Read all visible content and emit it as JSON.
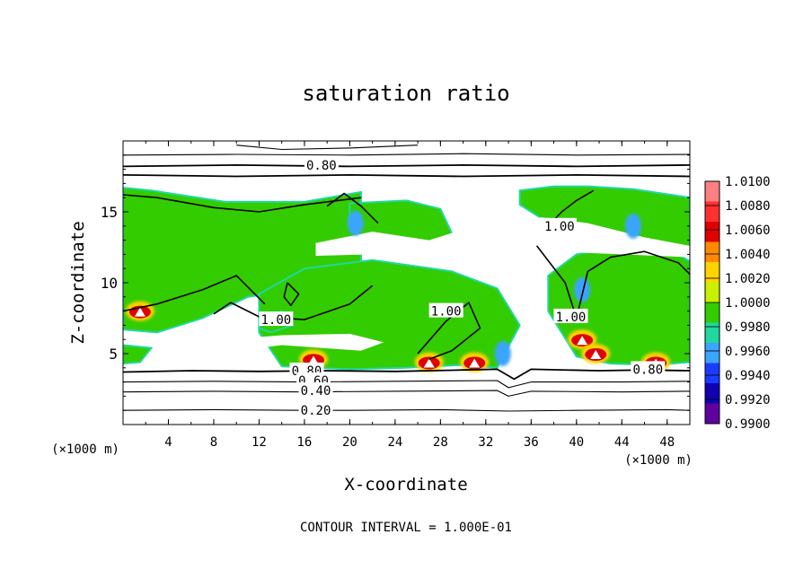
{
  "chart_data": {
    "type": "heatmap",
    "title": "saturation ratio",
    "xlabel": "X-coordinate",
    "ylabel": "Z-coordinate",
    "x_unit": "(×1000 m)",
    "x_ticks": [
      4,
      8,
      12,
      16,
      20,
      24,
      28,
      32,
      36,
      40,
      44,
      48
    ],
    "y_ticks": [
      5,
      10,
      15
    ],
    "xlim": [
      0,
      50
    ],
    "ylim": [
      0,
      20
    ],
    "footer": "CONTOUR INTERVAL = 1.000E-01",
    "colorbar": {
      "levels": [
        "1.0100",
        "1.0080",
        "1.0060",
        "1.0040",
        "1.0020",
        "1.0000",
        "0.9980",
        "0.9960",
        "0.9940",
        "0.9920",
        "0.9900"
      ],
      "colors": [
        "#ff8080",
        "#ff3030",
        "#e00000",
        "#ff8a00",
        "#ffd200",
        "#c9f000",
        "#33cc00",
        "#20d8a0",
        "#3aa4ff",
        "#1a3cff",
        "#1000b0",
        "#6000a0"
      ]
    },
    "contour_labels": [
      {
        "text": "0.80",
        "x": 17.5,
        "z": 18.3
      },
      {
        "text": "1.00",
        "x": 38.5,
        "z": 14.0
      },
      {
        "text": "1.00",
        "x": 13.5,
        "z": 7.4
      },
      {
        "text": "1.00",
        "x": 28.5,
        "z": 8.0
      },
      {
        "text": "1.00",
        "x": 39.5,
        "z": 7.6
      },
      {
        "text": "0.80",
        "x": 16.2,
        "z": 3.8
      },
      {
        "text": "0.60",
        "x": 16.8,
        "z": 3.1
      },
      {
        "text": "0.40",
        "x": 17.0,
        "z": 2.4
      },
      {
        "text": "0.20",
        "x": 17.0,
        "z": 1.0
      },
      {
        "text": "0.80",
        "x": 46.3,
        "z": 3.9
      }
    ],
    "field": {
      "green_regions": [
        {
          "x": [
            0,
            2.5,
            9,
            16,
            21,
            21,
            15,
            11,
            7,
            3,
            0
          ],
          "z": [
            16.7,
            16.5,
            15.7,
            15.7,
            16.4,
            11.5,
            9.5,
            9.0,
            7.5,
            6.5,
            6.7
          ]
        },
        {
          "x": [
            12,
            16,
            22,
            29,
            33,
            35,
            33,
            30,
            25,
            20,
            14,
            12
          ],
          "z": [
            9.2,
            11.0,
            11.6,
            10.8,
            9.6,
            7.0,
            4.0,
            4.2,
            4.0,
            3.9,
            4.1,
            6.5
          ]
        },
        {
          "x": [
            35,
            38,
            41,
            45,
            50,
            50,
            47,
            43,
            39,
            37,
            35
          ],
          "z": [
            16.5,
            16.8,
            16.8,
            16.6,
            16.0,
            12.5,
            12.0,
            12.2,
            13.2,
            14.5,
            15.5
          ]
        },
        {
          "x": [
            37.5,
            40,
            44,
            48,
            50,
            50,
            47,
            43,
            40,
            37.5
          ],
          "z": [
            10.5,
            12.0,
            12.6,
            12.5,
            11.5,
            4.4,
            4.2,
            4.3,
            4.8,
            8.0
          ]
        },
        {
          "x": [
            20,
            25,
            28,
            29,
            26,
            22,
            20
          ],
          "z": [
            15.6,
            15.8,
            15.2,
            13.5,
            12.0,
            12.5,
            14.0
          ]
        },
        {
          "x": [
            0,
            2.5,
            1.5,
            0
          ],
          "z": [
            5.6,
            5.4,
            4.4,
            4.3
          ]
        },
        {
          "x": [
            13,
            15,
            14,
            12.5,
            12
          ],
          "z": [
            6.5,
            7.0,
            8.0,
            7.5,
            6.8
          ]
        }
      ],
      "hot_spots": [
        {
          "x": 1.5,
          "z": 8.0
        },
        {
          "x": 16.8,
          "z": 4.6
        },
        {
          "x": 27.0,
          "z": 4.4
        },
        {
          "x": 31.0,
          "z": 4.4
        },
        {
          "x": 40.5,
          "z": 6.0
        },
        {
          "x": 41.7,
          "z": 5.0
        },
        {
          "x": 47.0,
          "z": 4.4
        }
      ],
      "cold_spots": [
        {
          "x": 33.5,
          "z": 5.0
        },
        {
          "x": 40.5,
          "z": 9.5
        },
        {
          "x": 20.5,
          "z": 14.2
        },
        {
          "x": 45.0,
          "z": 14.0
        }
      ],
      "white_gaps": [
        {
          "x": [
            17,
            22,
            27,
            31,
            37,
            41,
            46,
            50,
            50,
            44,
            38,
            33,
            27,
            22,
            17
          ],
          "z": [
            12.8,
            13.6,
            13.0,
            14.0,
            14.6,
            14.2,
            13.2,
            12.6,
            11.8,
            12.0,
            12.2,
            11.2,
            11.4,
            12.0,
            11.9
          ]
        },
        {
          "x": [
            1,
            6,
            14,
            20,
            23,
            21,
            14,
            8,
            3,
            1
          ],
          "z": [
            6.0,
            5.8,
            6.3,
            6.4,
            5.8,
            5.2,
            5.6,
            5.0,
            5.4,
            5.7
          ]
        }
      ]
    },
    "contours": [
      {
        "level": 0.2,
        "x": [
          0,
          8,
          16,
          20,
          28,
          34,
          40,
          48,
          50
        ],
        "z": [
          1.0,
          1.05,
          1.0,
          1.0,
          1.05,
          0.95,
          1.0,
          1.05,
          1.0
        ]
      },
      {
        "level": 0.4,
        "x": [
          0,
          8,
          16,
          24,
          33,
          34,
          36,
          44,
          50
        ],
        "z": [
          2.3,
          2.35,
          2.3,
          2.35,
          2.4,
          2.0,
          2.35,
          2.3,
          2.35
        ]
      },
      {
        "level": 0.6,
        "x": [
          0,
          8,
          16,
          24,
          33,
          34,
          36,
          44,
          50
        ],
        "z": [
          3.0,
          3.05,
          3.0,
          3.05,
          3.1,
          2.6,
          3.0,
          3.0,
          3.05
        ]
      },
      {
        "level": 0.8,
        "x": [
          0,
          6,
          12,
          18,
          24,
          30,
          33,
          34.5,
          36,
          42,
          46,
          50
        ],
        "z": [
          3.7,
          3.8,
          3.75,
          3.8,
          3.75,
          3.85,
          3.9,
          3.2,
          3.9,
          3.8,
          3.85,
          3.8
        ]
      },
      {
        "level": 0.8,
        "x": [
          0,
          10,
          20,
          30,
          40,
          50
        ],
        "z": [
          18.2,
          18.3,
          18.2,
          18.3,
          18.2,
          18.3
        ]
      },
      {
        "level": 0.8,
        "x": [
          0,
          10,
          20,
          30,
          40,
          50
        ],
        "z": [
          17.6,
          17.5,
          17.6,
          17.5,
          17.6,
          17.5
        ]
      },
      {
        "level": 0.6,
        "x": [
          0,
          10,
          20,
          30,
          40,
          50
        ],
        "z": [
          19.0,
          19.05,
          19.0,
          19.1,
          19.0,
          19.05
        ]
      },
      {
        "level": 0.6,
        "x": [
          10,
          14,
          20,
          26
        ],
        "z": [
          19.7,
          19.4,
          19.5,
          19.7
        ]
      },
      {
        "level": 1.0,
        "x": [
          0,
          3,
          8,
          12,
          16,
          21
        ],
        "z": [
          16.2,
          16.0,
          15.3,
          15.0,
          15.5,
          16.0
        ]
      },
      {
        "level": 1.0,
        "x": [
          0,
          3,
          7,
          10,
          12.5
        ],
        "z": [
          8.0,
          8.5,
          9.5,
          10.5,
          8.5
        ]
      },
      {
        "level": 1.0,
        "x": [
          8,
          9.5,
          12,
          16,
          20,
          22
        ],
        "z": [
          7.8,
          8.6,
          7.6,
          7.4,
          8.5,
          9.8
        ]
      },
      {
        "level": 1.0,
        "x": [
          26,
          28.5,
          30.5,
          31.5,
          29,
          27
        ],
        "z": [
          5.0,
          7.3,
          8.6,
          6.8,
          5.2,
          4.6
        ]
      },
      {
        "level": 1.0,
        "x": [
          36.5,
          39,
          40,
          41,
          43,
          46,
          49,
          50
        ],
        "z": [
          12.6,
          10.0,
          7.5,
          10.8,
          11.8,
          12.2,
          11.4,
          10.6
        ]
      },
      {
        "level": 1.0,
        "x": [
          37.5,
          38.7,
          40,
          41.5
        ],
        "z": [
          14.0,
          15.0,
          15.8,
          16.5
        ]
      },
      {
        "level": 1.0,
        "x": [
          18,
          19.5,
          21,
          22.5
        ],
        "z": [
          15.4,
          16.3,
          15.4,
          14.2
        ]
      },
      {
        "level": 1.0,
        "x": [
          14.5,
          15.5,
          14.8,
          14.2,
          14.5
        ],
        "z": [
          10.0,
          9.2,
          8.4,
          9.0,
          10.0
        ]
      }
    ]
  }
}
